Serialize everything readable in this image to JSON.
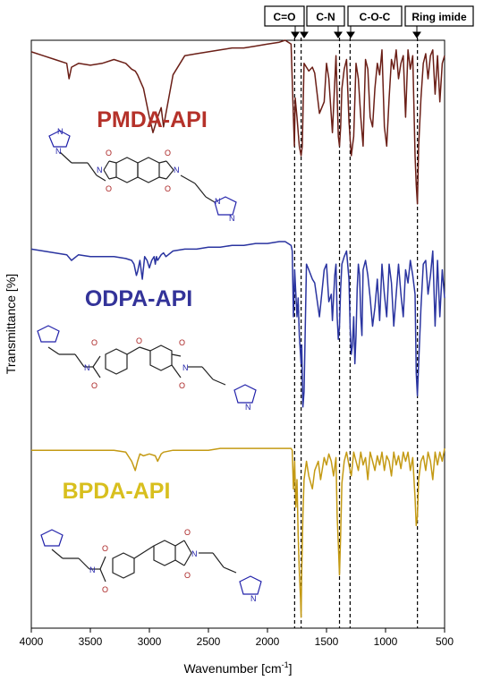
{
  "colors": {
    "PMDA-API": "#6b1f17",
    "ODPA-API": "#2a34a0",
    "BPDA-API": "#c49a14",
    "BPDA-label": "#d8bf1e",
    "PMDA-label": "#b5322a",
    "ODPA-label": "#333399",
    "molecule_ring_N": "#2222aa",
    "molecule_O": "#aa2222"
  },
  "chart_data": {
    "type": "line",
    "xlabel": "Wavenumber [cm-1]",
    "ylabel": "Transmittance [%]",
    "xlim": [
      4000,
      500
    ],
    "x_reversed": true,
    "xticks": [
      4000,
      3500,
      3000,
      2500,
      2000,
      1500,
      1000,
      500
    ],
    "y_ticks_shown": false,
    "bands": [
      {
        "label": "C=O",
        "lines": [
          1770,
          1715
        ]
      },
      {
        "label": "C-N",
        "lines": [
          1390,
          1300
        ]
      },
      {
        "label": "C-O-C",
        "lines": []
      },
      {
        "label": "Ring imide",
        "lines": [
          730
        ]
      }
    ],
    "series": [
      {
        "name": "PMDA-API",
        "offset": 2,
        "x": [
          4000,
          3900,
          3800,
          3700,
          3680,
          3660,
          3600,
          3500,
          3400,
          3300,
          3200,
          3150,
          3120,
          3100,
          3050,
          3000,
          2970,
          2950,
          2930,
          2900,
          2880,
          2860,
          2800,
          2700,
          2600,
          2500,
          2400,
          2300,
          2200,
          2100,
          2000,
          1950,
          1900,
          1850,
          1800,
          1780,
          1772,
          1765,
          1750,
          1730,
          1715,
          1705,
          1690,
          1670,
          1650,
          1620,
          1600,
          1560,
          1520,
          1500,
          1480,
          1450,
          1420,
          1400,
          1390,
          1380,
          1370,
          1350,
          1330,
          1310,
          1290,
          1270,
          1250,
          1230,
          1210,
          1190,
          1170,
          1150,
          1130,
          1110,
          1090,
          1070,
          1050,
          1030,
          1010,
          990,
          970,
          950,
          930,
          910,
          890,
          870,
          850,
          830,
          810,
          790,
          770,
          750,
          740,
          730,
          720,
          700,
          680,
          660,
          640,
          620,
          600,
          580,
          560,
          540,
          520,
          500
        ],
        "y": [
          0.94,
          0.92,
          0.9,
          0.88,
          0.8,
          0.86,
          0.88,
          0.87,
          0.88,
          0.9,
          0.88,
          0.85,
          0.84,
          0.82,
          0.75,
          0.6,
          0.52,
          0.56,
          0.6,
          0.65,
          0.55,
          0.62,
          0.82,
          0.92,
          0.93,
          0.94,
          0.95,
          0.96,
          0.96,
          0.97,
          0.98,
          0.985,
          0.99,
          1.0,
          0.98,
          0.6,
          0.45,
          0.7,
          0.6,
          0.45,
          0.4,
          0.45,
          0.88,
          0.86,
          0.84,
          0.86,
          0.83,
          0.62,
          0.68,
          0.88,
          0.8,
          0.52,
          0.92,
          0.5,
          0.45,
          0.55,
          0.75,
          0.85,
          0.9,
          0.58,
          0.4,
          0.5,
          0.88,
          0.8,
          0.6,
          0.45,
          0.9,
          0.85,
          0.6,
          0.55,
          0.75,
          0.88,
          0.82,
          0.95,
          0.55,
          0.45,
          0.7,
          0.9,
          0.85,
          0.95,
          0.8,
          0.88,
          0.92,
          0.6,
          0.95,
          0.85,
          0.92,
          0.4,
          0.25,
          0.15,
          0.45,
          0.7,
          0.88,
          0.93,
          0.8,
          0.92,
          0.95,
          0.72,
          0.92,
          0.68,
          0.88,
          0.92
        ]
      },
      {
        "name": "ODPA-API",
        "offset": 1,
        "x": [
          4000,
          3900,
          3800,
          3700,
          3660,
          3600,
          3500,
          3400,
          3300,
          3200,
          3150,
          3130,
          3110,
          3100,
          3080,
          3060,
          3050,
          3040,
          3020,
          3000,
          2980,
          2960,
          2950,
          2940,
          2930,
          2900,
          2880,
          2860,
          2800,
          2700,
          2600,
          2500,
          2400,
          2300,
          2200,
          2100,
          2000,
          1900,
          1850,
          1800,
          1790,
          1780,
          1770,
          1750,
          1740,
          1730,
          1715,
          1710,
          1700,
          1690,
          1670,
          1650,
          1620,
          1600,
          1560,
          1520,
          1500,
          1480,
          1460,
          1450,
          1430,
          1420,
          1410,
          1400,
          1390,
          1380,
          1370,
          1350,
          1330,
          1310,
          1300,
          1290,
          1280,
          1270,
          1260,
          1250,
          1240,
          1230,
          1220,
          1210,
          1200,
          1190,
          1170,
          1150,
          1130,
          1110,
          1090,
          1070,
          1050,
          1030,
          1010,
          990,
          970,
          950,
          930,
          910,
          890,
          870,
          850,
          830,
          810,
          790,
          770,
          750,
          740,
          730,
          720,
          700,
          680,
          660,
          640,
          620,
          600,
          580,
          560,
          540,
          520,
          500
        ],
        "y": [
          0.96,
          0.95,
          0.94,
          0.93,
          0.9,
          0.93,
          0.92,
          0.92,
          0.92,
          0.91,
          0.9,
          0.88,
          0.82,
          0.84,
          0.9,
          0.8,
          0.86,
          0.92,
          0.9,
          0.86,
          0.9,
          0.92,
          0.88,
          0.92,
          0.9,
          0.93,
          0.94,
          0.92,
          0.95,
          0.96,
          0.96,
          0.97,
          0.97,
          0.98,
          0.98,
          0.99,
          0.99,
          1.0,
          1.0,
          0.98,
          0.95,
          0.6,
          0.85,
          0.6,
          0.7,
          0.5,
          0.35,
          0.45,
          0.12,
          0.2,
          0.88,
          0.85,
          0.8,
          0.78,
          0.6,
          0.85,
          0.88,
          0.68,
          0.72,
          0.58,
          0.82,
          0.88,
          0.6,
          0.48,
          0.55,
          0.75,
          0.88,
          0.92,
          0.95,
          0.8,
          0.55,
          0.4,
          0.45,
          0.6,
          0.35,
          0.5,
          0.75,
          0.88,
          0.82,
          0.6,
          0.5,
          0.85,
          0.9,
          0.82,
          0.7,
          0.55,
          0.65,
          0.8,
          0.58,
          0.88,
          0.72,
          0.6,
          0.88,
          0.78,
          0.55,
          0.72,
          0.88,
          0.72,
          0.6,
          0.85,
          0.78,
          0.9,
          0.82,
          0.72,
          0.3,
          0.18,
          0.35,
          0.65,
          0.88,
          0.9,
          0.72,
          0.82,
          0.95,
          0.55,
          0.9,
          0.6,
          0.85,
          0.7
        ]
      },
      {
        "name": "BPDA-API",
        "offset": 0,
        "x": [
          4000,
          3900,
          3800,
          3700,
          3600,
          3500,
          3400,
          3300,
          3200,
          3150,
          3120,
          3100,
          3080,
          3050,
          3000,
          2950,
          2930,
          2900,
          2880,
          2800,
          2700,
          2600,
          2500,
          2400,
          2300,
          2200,
          2100,
          2000,
          1900,
          1800,
          1790,
          1780,
          1770,
          1760,
          1750,
          1740,
          1730,
          1720,
          1715,
          1710,
          1700,
          1690,
          1670,
          1650,
          1620,
          1600,
          1570,
          1550,
          1520,
          1500,
          1480,
          1460,
          1440,
          1420,
          1410,
          1400,
          1390,
          1380,
          1370,
          1350,
          1330,
          1310,
          1290,
          1270,
          1250,
          1230,
          1210,
          1190,
          1170,
          1150,
          1130,
          1110,
          1090,
          1070,
          1050,
          1030,
          1010,
          990,
          970,
          950,
          930,
          910,
          890,
          870,
          850,
          830,
          810,
          790,
          770,
          750,
          740,
          730,
          720,
          700,
          680,
          660,
          640,
          620,
          600,
          580,
          560,
          540,
          520,
          500
        ],
        "y": [
          0.96,
          0.96,
          0.96,
          0.96,
          0.96,
          0.96,
          0.96,
          0.96,
          0.95,
          0.9,
          0.85,
          0.9,
          0.94,
          0.93,
          0.94,
          0.93,
          0.9,
          0.94,
          0.95,
          0.96,
          0.96,
          0.96,
          0.96,
          0.97,
          0.97,
          0.97,
          0.97,
          0.97,
          0.97,
          0.97,
          0.96,
          0.75,
          0.9,
          0.65,
          0.8,
          0.5,
          0.3,
          0.15,
          0.05,
          0.3,
          0.6,
          0.8,
          0.9,
          0.82,
          0.75,
          0.85,
          0.9,
          0.8,
          0.92,
          0.88,
          0.94,
          0.9,
          0.82,
          0.92,
          0.6,
          0.45,
          0.28,
          0.5,
          0.78,
          0.9,
          0.95,
          0.88,
          0.82,
          0.95,
          0.9,
          0.85,
          0.95,
          0.88,
          0.92,
          0.8,
          0.95,
          0.9,
          0.85,
          0.93,
          0.88,
          0.95,
          0.85,
          0.93,
          0.9,
          0.82,
          0.95,
          0.88,
          0.93,
          0.86,
          0.95,
          0.9,
          0.95,
          0.85,
          0.92,
          0.7,
          0.55,
          0.6,
          0.8,
          0.9,
          0.93,
          0.85,
          0.95,
          0.9,
          0.8,
          0.95,
          0.88,
          0.95,
          0.9,
          0.97
        ]
      }
    ]
  },
  "band_labels": [
    "C=O",
    "C-N",
    "C-O-C",
    "Ring imide"
  ],
  "series_labels": [
    "PMDA-API",
    "ODPA-API",
    "BPDA-API"
  ],
  "axis": {
    "ylabel": "Transmittance [%]",
    "xlabel_main": "Wavenumber [cm",
    "xlabel_sup": "-1",
    "xlabel_tail": "]"
  },
  "atoms": {
    "N": "N",
    "O": "O"
  },
  "molecules": [
    {
      "name": "PMDA-API structure",
      "icon": "pmda-api-molecule-icon"
    },
    {
      "name": "ODPA-API structure",
      "icon": "odpa-api-molecule-icon"
    },
    {
      "name": "BPDA-API structure",
      "icon": "bpda-api-molecule-icon"
    }
  ]
}
